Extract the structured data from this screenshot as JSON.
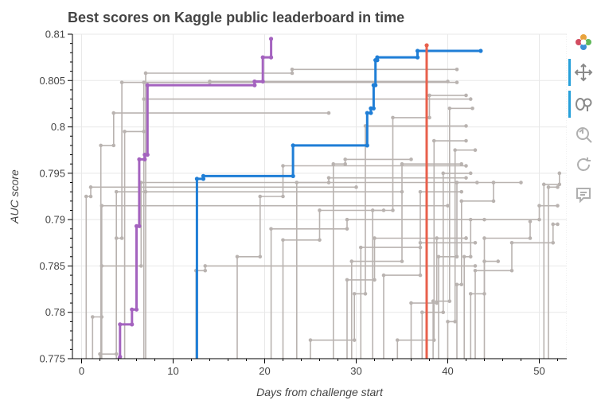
{
  "chart_data": {
    "type": "line",
    "title": "Best scores on Kaggle public leaderboard in time",
    "xlabel": "Days from challenge start",
    "ylabel": "AUC score",
    "xlim": [
      -1,
      53
    ],
    "ylim": [
      0.775,
      0.81
    ],
    "x_ticks": [
      0,
      10,
      20,
      30,
      40,
      50
    ],
    "y_ticks": [
      0.775,
      0.78,
      0.785,
      0.79,
      0.795,
      0.8,
      0.805,
      0.81
    ],
    "y_tick_labels": [
      "0.775",
      "0.78",
      "0.785",
      "0.79",
      "0.795",
      "0.8",
      "0.805",
      "0.81"
    ],
    "grid": true,
    "highlighted_series": [
      {
        "color": "#a463bf",
        "points": [
          [
            4.0,
            0.775
          ],
          [
            4.2,
            0.7752
          ],
          [
            4.2,
            0.7787
          ],
          [
            5.5,
            0.7787
          ],
          [
            5.5,
            0.7803
          ],
          [
            6.0,
            0.7803
          ],
          [
            6.0,
            0.7893
          ],
          [
            6.3,
            0.7893
          ],
          [
            6.3,
            0.7965
          ],
          [
            6.9,
            0.7965
          ],
          [
            6.9,
            0.797
          ],
          [
            7.2,
            0.797
          ],
          [
            7.2,
            0.8045
          ],
          [
            18.9,
            0.8045
          ],
          [
            18.9,
            0.8049
          ],
          [
            19.8,
            0.8049
          ],
          [
            19.8,
            0.8075
          ],
          [
            20.7,
            0.8075
          ],
          [
            20.7,
            0.8095
          ]
        ]
      },
      {
        "color": "#1f7ed6",
        "points": [
          [
            12.6,
            0.775
          ],
          [
            12.6,
            0.7944
          ],
          [
            13.3,
            0.7944
          ],
          [
            13.3,
            0.7947
          ],
          [
            23.1,
            0.7947
          ],
          [
            23.1,
            0.798
          ],
          [
            31.2,
            0.798
          ],
          [
            31.2,
            0.8015
          ],
          [
            31.6,
            0.8015
          ],
          [
            31.6,
            0.802
          ],
          [
            31.9,
            0.802
          ],
          [
            31.9,
            0.8045
          ],
          [
            32.1,
            0.8045
          ],
          [
            32.1,
            0.8072
          ],
          [
            32.3,
            0.8072
          ],
          [
            32.3,
            0.8075
          ],
          [
            36.7,
            0.8075
          ],
          [
            36.7,
            0.8082
          ],
          [
            43.6,
            0.8082
          ]
        ]
      },
      {
        "color": "#e8604c",
        "points": [
          [
            37.7,
            0.775
          ],
          [
            37.7,
            0.8088
          ]
        ]
      }
    ],
    "background_series": [
      {
        "points": [
          [
            0.5,
            0.775
          ],
          [
            0.5,
            0.7925
          ],
          [
            1.0,
            0.7925
          ],
          [
            1.0,
            0.7935
          ],
          [
            30.0,
            0.7935
          ]
        ]
      },
      {
        "points": [
          [
            1.2,
            0.775
          ],
          [
            1.2,
            0.7795
          ],
          [
            2.2,
            0.7795
          ],
          [
            2.2,
            0.7915
          ],
          [
            40.0,
            0.7915
          ]
        ]
      },
      {
        "points": [
          [
            2.0,
            0.775
          ],
          [
            2.0,
            0.7755
          ],
          [
            3.8,
            0.7755
          ],
          [
            3.8,
            0.793
          ],
          [
            35.0,
            0.793
          ]
        ]
      },
      {
        "points": [
          [
            2.1,
            0.775
          ],
          [
            2.1,
            0.798
          ],
          [
            3.5,
            0.798
          ],
          [
            3.5,
            0.8015
          ],
          [
            27.0,
            0.8015
          ]
        ]
      },
      {
        "points": [
          [
            2.2,
            0.775
          ],
          [
            2.2,
            0.785
          ],
          [
            6.5,
            0.785
          ],
          [
            6.5,
            0.794
          ],
          [
            45.0,
            0.794
          ]
        ]
      },
      {
        "points": [
          [
            3.8,
            0.775
          ],
          [
            3.8,
            0.788
          ],
          [
            4.4,
            0.788
          ],
          [
            4.4,
            0.8048
          ],
          [
            41.0,
            0.8048
          ]
        ]
      },
      {
        "points": [
          [
            4.7,
            0.775
          ],
          [
            4.7,
            0.7995
          ],
          [
            6.8,
            0.7995
          ],
          [
            6.8,
            0.803
          ],
          [
            42.5,
            0.803
          ]
        ]
      },
      {
        "points": [
          [
            7.0,
            0.775
          ],
          [
            7.0,
            0.793
          ],
          [
            7.0,
            0.8058
          ],
          [
            23.0,
            0.8058
          ],
          [
            23.0,
            0.8062
          ],
          [
            41.0,
            0.8062
          ]
        ]
      },
      {
        "points": [
          [
            6.8,
            0.775
          ],
          [
            6.8,
            0.8048
          ],
          [
            14.0,
            0.8048
          ],
          [
            14.0,
            0.8049
          ],
          [
            40.0,
            0.8049
          ]
        ]
      },
      {
        "points": [
          [
            12.5,
            0.775
          ],
          [
            12.5,
            0.7845
          ],
          [
            13.5,
            0.7845
          ],
          [
            13.5,
            0.785
          ],
          [
            43.0,
            0.785
          ]
        ]
      },
      {
        "points": [
          [
            17.0,
            0.775
          ],
          [
            17.0,
            0.786
          ],
          [
            19.5,
            0.786
          ],
          [
            19.5,
            0.7925
          ],
          [
            22.0,
            0.7925
          ],
          [
            22.0,
            0.7958
          ],
          [
            42.0,
            0.7958
          ]
        ]
      },
      {
        "points": [
          [
            20.7,
            0.775
          ],
          [
            20.7,
            0.789
          ],
          [
            29.0,
            0.789
          ],
          [
            29.0,
            0.79
          ],
          [
            44.0,
            0.79
          ]
        ]
      },
      {
        "points": [
          [
            23.5,
            0.775
          ],
          [
            23.5,
            0.794
          ],
          [
            27.0,
            0.794
          ],
          [
            27.0,
            0.7945
          ],
          [
            42.0,
            0.7945
          ]
        ]
      },
      {
        "points": [
          [
            25.0,
            0.775
          ],
          [
            25.0,
            0.777
          ],
          [
            29.8,
            0.777
          ],
          [
            29.8,
            0.782
          ],
          [
            31.0,
            0.782
          ],
          [
            31.0,
            0.8001
          ],
          [
            42.0,
            0.8001
          ]
        ]
      },
      {
        "points": [
          [
            29.0,
            0.775
          ],
          [
            29.0,
            0.7835
          ],
          [
            32.0,
            0.7835
          ],
          [
            32.0,
            0.788
          ],
          [
            42.0,
            0.788
          ]
        ]
      },
      {
        "points": [
          [
            29.5,
            0.775
          ],
          [
            29.5,
            0.7855
          ],
          [
            35.0,
            0.7855
          ],
          [
            35.0,
            0.796
          ],
          [
            41.5,
            0.796
          ]
        ]
      },
      {
        "points": [
          [
            30.5,
            0.775
          ],
          [
            30.5,
            0.787
          ],
          [
            37.0,
            0.787
          ],
          [
            37.0,
            0.7875
          ],
          [
            43.0,
            0.7875
          ]
        ]
      },
      {
        "points": [
          [
            31.8,
            0.775
          ],
          [
            31.8,
            0.791
          ],
          [
            34.0,
            0.791
          ],
          [
            34.0,
            0.801
          ],
          [
            38.0,
            0.801
          ],
          [
            38.0,
            0.8034
          ],
          [
            42.0,
            0.8034
          ]
        ]
      },
      {
        "points": [
          [
            33.0,
            0.775
          ],
          [
            33.0,
            0.784
          ],
          [
            37.0,
            0.784
          ],
          [
            37.0,
            0.793
          ],
          [
            41.5,
            0.793
          ]
        ]
      },
      {
        "points": [
          [
            34.5,
            0.775
          ],
          [
            34.5,
            0.777
          ],
          [
            38.5,
            0.777
          ],
          [
            38.5,
            0.7985
          ],
          [
            42.0,
            0.7985
          ]
        ]
      },
      {
        "points": [
          [
            36.0,
            0.775
          ],
          [
            36.0,
            0.781
          ],
          [
            38.8,
            0.781
          ],
          [
            38.8,
            0.788
          ],
          [
            42.0,
            0.788
          ]
        ]
      },
      {
        "points": [
          [
            37.2,
            0.775
          ],
          [
            37.2,
            0.78
          ],
          [
            39.5,
            0.78
          ],
          [
            39.5,
            0.795
          ],
          [
            42.5,
            0.795
          ]
        ]
      },
      {
        "points": [
          [
            38.4,
            0.775
          ],
          [
            38.4,
            0.7812
          ],
          [
            40.2,
            0.7812
          ],
          [
            40.2,
            0.802
          ],
          [
            42.7,
            0.802
          ]
        ]
      },
      {
        "points": [
          [
            39.0,
            0.775
          ],
          [
            39.0,
            0.786
          ],
          [
            41.0,
            0.786
          ],
          [
            41.0,
            0.794
          ],
          [
            43.2,
            0.794
          ]
        ]
      },
      {
        "points": [
          [
            40.0,
            0.775
          ],
          [
            40.0,
            0.779
          ],
          [
            40.8,
            0.779
          ],
          [
            40.8,
            0.7975
          ],
          [
            43.0,
            0.7975
          ]
        ]
      },
      {
        "points": [
          [
            41.0,
            0.775
          ],
          [
            41.0,
            0.783
          ],
          [
            41.5,
            0.783
          ],
          [
            41.5,
            0.792
          ],
          [
            45.0,
            0.792
          ],
          [
            45.0,
            0.794
          ],
          [
            48.0,
            0.794
          ]
        ]
      },
      {
        "points": [
          [
            41.8,
            0.775
          ],
          [
            41.8,
            0.786
          ],
          [
            42.5,
            0.786
          ],
          [
            42.5,
            0.79
          ],
          [
            50.0,
            0.79
          ],
          [
            50.0,
            0.7915
          ],
          [
            52.0,
            0.7915
          ]
        ]
      },
      {
        "points": [
          [
            42.5,
            0.775
          ],
          [
            42.5,
            0.782
          ],
          [
            44.0,
            0.782
          ],
          [
            44.0,
            0.788
          ],
          [
            49.0,
            0.788
          ],
          [
            49.0,
            0.7898
          ]
        ]
      },
      {
        "points": [
          [
            43.0,
            0.775
          ],
          [
            43.0,
            0.7845
          ],
          [
            47.0,
            0.7845
          ],
          [
            47.0,
            0.7875
          ],
          [
            51.5,
            0.7875
          ],
          [
            51.5,
            0.7895
          ],
          [
            52.0,
            0.7895
          ]
        ]
      },
      {
        "points": [
          [
            50.5,
            0.775
          ],
          [
            50.5,
            0.7938
          ],
          [
            52.2,
            0.7938
          ],
          [
            52.2,
            0.795
          ]
        ]
      },
      {
        "points": [
          [
            51.0,
            0.775
          ],
          [
            51.0,
            0.7935
          ],
          [
            52.0,
            0.7935
          ]
        ]
      },
      {
        "points": [
          [
            44.0,
            0.775
          ],
          [
            44.0,
            0.7855
          ],
          [
            45.5,
            0.7855
          ]
        ]
      },
      {
        "points": [
          [
            27.5,
            0.775
          ],
          [
            27.5,
            0.796
          ],
          [
            28.8,
            0.796
          ],
          [
            28.8,
            0.7965
          ],
          [
            36.0,
            0.7965
          ]
        ]
      },
      {
        "points": [
          [
            22.0,
            0.775
          ],
          [
            22.0,
            0.7878
          ],
          [
            26.0,
            0.7878
          ],
          [
            26.0,
            0.791
          ],
          [
            33.0,
            0.791
          ]
        ]
      }
    ],
    "tools": [
      "bokeh-logo-icon",
      "pan-icon",
      "wheel-zoom-icon",
      "reset-icon",
      "refresh-icon",
      "hover-icon"
    ]
  }
}
